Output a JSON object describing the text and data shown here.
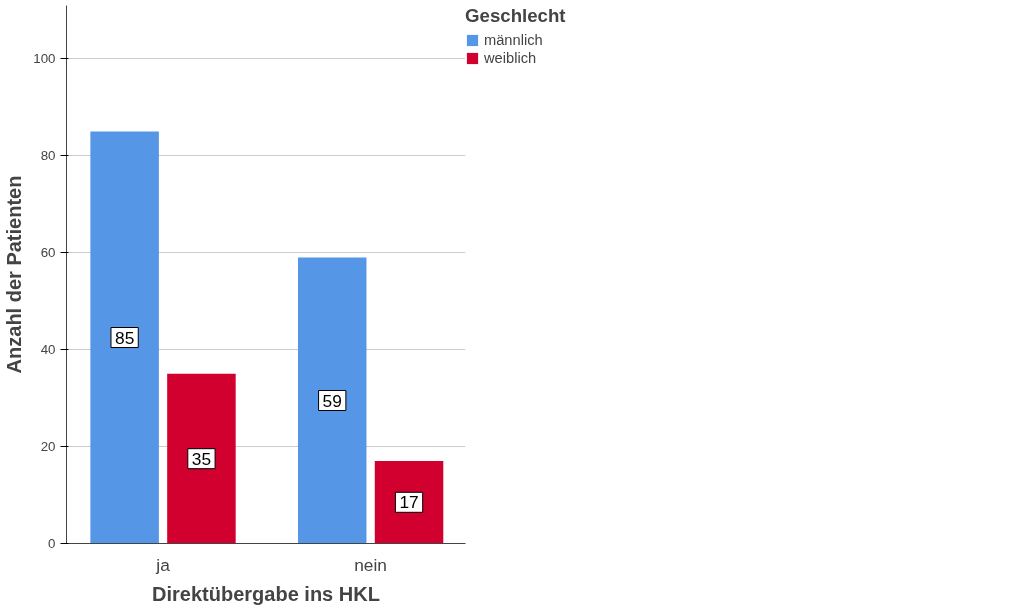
{
  "chart_data": {
    "type": "bar",
    "xlabel": "Direktübergabe ins HKL",
    "ylabel": "Anzahl der Patienten",
    "legend_title": "Geschlecht",
    "categories": [
      "ja",
      "nein"
    ],
    "series": [
      {
        "name": "männlich",
        "color": "#5596e6",
        "values": [
          85,
          59
        ]
      },
      {
        "name": "weiblich",
        "color": "#d2002f",
        "values": [
          35,
          17
        ]
      }
    ],
    "ylim": [
      0,
      111
    ],
    "yticks": [
      0,
      20,
      40,
      60,
      80,
      100
    ],
    "grid": "y",
    "legend": "top right",
    "data_labels": true
  }
}
